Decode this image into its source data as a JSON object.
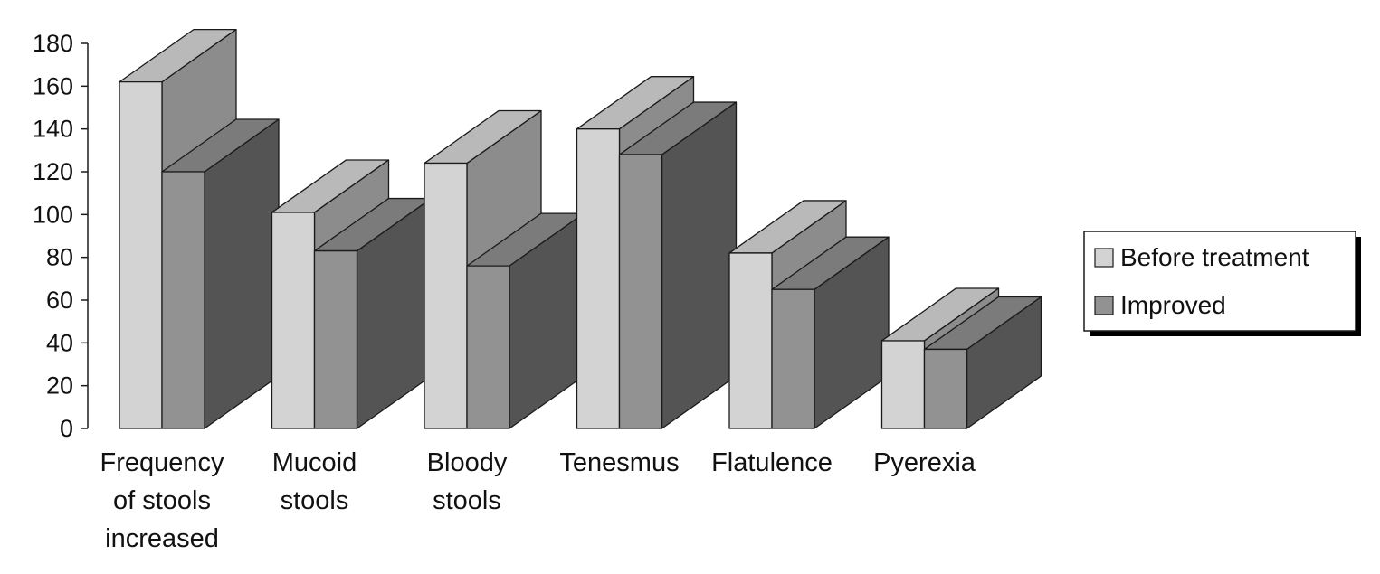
{
  "chart_data": {
    "type": "bar",
    "title": "",
    "xlabel": "",
    "ylabel": "",
    "ylim": [
      0,
      180
    ],
    "yticks": [
      0,
      20,
      40,
      60,
      80,
      100,
      120,
      140,
      160,
      180
    ],
    "categories": [
      [
        "Frequency",
        "of stools",
        "increased"
      ],
      [
        "Mucoid",
        "stools"
      ],
      [
        "Bloody",
        "stools"
      ],
      [
        "Tenesmus"
      ],
      [
        "Flatulence"
      ],
      [
        "Pyerexia"
      ]
    ],
    "series": [
      {
        "name": "Before treatment",
        "values": [
          162,
          101,
          124,
          140,
          82,
          41
        ]
      },
      {
        "name": "Improved",
        "values": [
          120,
          83,
          76,
          128,
          65,
          37
        ]
      }
    ],
    "style": "3d",
    "grid": false,
    "legend_position": "right",
    "colors": {
      "before_front": "#d3d3d3",
      "before_top": "#b9b9b9",
      "before_side": "#8c8c8c",
      "improved_front": "#929292",
      "improved_top": "#7b7b7b",
      "improved_side": "#545454",
      "outline": "#1a1a1a"
    }
  }
}
